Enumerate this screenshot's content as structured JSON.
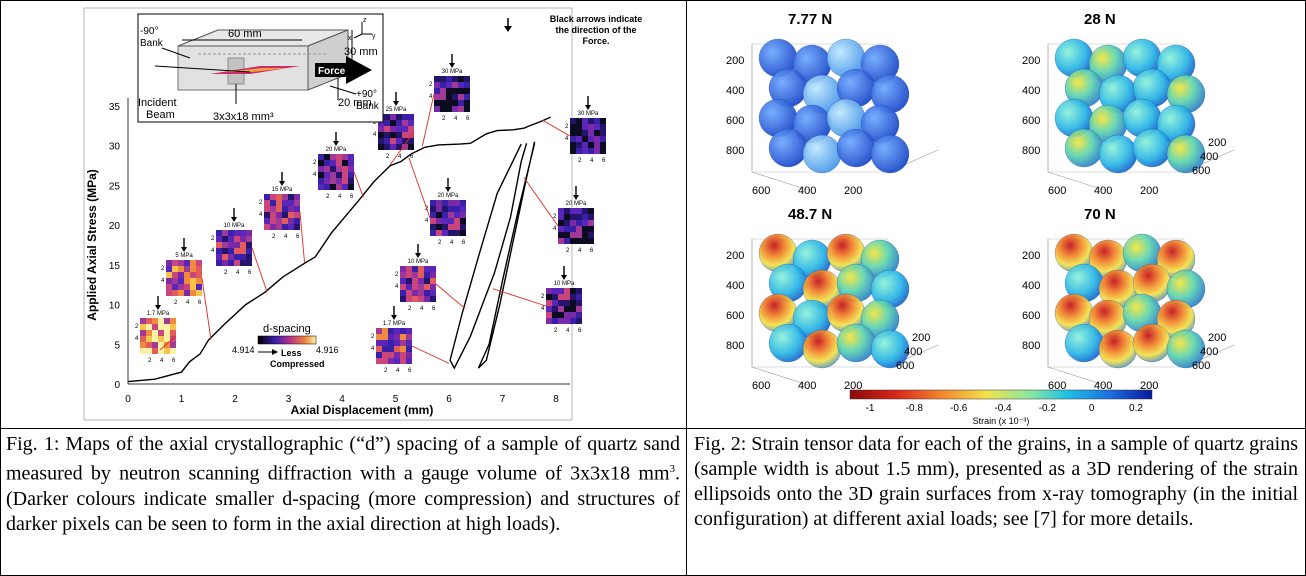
{
  "fig1": {
    "chart_data": {
      "type": "line",
      "title": "",
      "xlabel": "Axial Displacement (mm)",
      "ylabel": "Applied Axial Stress (MPa)",
      "xlim": [
        0,
        8
      ],
      "ylim": [
        0,
        35
      ],
      "x_ticks": [
        "0",
        "1",
        "2",
        "3",
        "4",
        "5",
        "6",
        "7",
        "8"
      ],
      "y_ticks": [
        "0",
        "5",
        "10",
        "15",
        "20",
        "25",
        "30",
        "35"
      ],
      "curve": [
        [
          0,
          0.3
        ],
        [
          0.5,
          0.6
        ],
        [
          1.0,
          1.5
        ],
        [
          1.15,
          2.8
        ],
        [
          1.35,
          3.8
        ],
        [
          1.5,
          5.5
        ],
        [
          1.8,
          7.5
        ],
        [
          2.2,
          10
        ],
        [
          2.55,
          11.5
        ],
        [
          2.9,
          13.5
        ],
        [
          3.3,
          15.2
        ],
        [
          3.5,
          16
        ],
        [
          3.8,
          19
        ],
        [
          4.3,
          23
        ],
        [
          4.6,
          25.5
        ],
        [
          4.9,
          27.5
        ],
        [
          5.1,
          28
        ],
        [
          5.3,
          29
        ],
        [
          5.55,
          29.8
        ],
        [
          5.8,
          30.1
        ],
        [
          6.2,
          30.2
        ],
        [
          6.4,
          30.3
        ],
        [
          6.7,
          31.5
        ],
        [
          6.9,
          31.9
        ],
        [
          7.2,
          32
        ],
        [
          7.4,
          32.2
        ],
        [
          7.5,
          32.5
        ],
        [
          7.7,
          33
        ],
        [
          7.8,
          33.3
        ],
        [
          7.9,
          33.6
        ]
      ],
      "loops": [
        [
          [
            7.35,
            30.2
          ],
          [
            6.9,
            24
          ],
          [
            6.55,
            16
          ],
          [
            6.25,
            9
          ],
          [
            6.02,
            3
          ],
          [
            6.1,
            2
          ],
          [
            6.4,
            6
          ],
          [
            6.85,
            14
          ],
          [
            7.15,
            21
          ],
          [
            7.35,
            28
          ],
          [
            7.45,
            30.3
          ]
        ],
        [
          [
            7.6,
            30.3
          ],
          [
            7.3,
            22
          ],
          [
            7.0,
            13
          ],
          [
            6.75,
            5
          ],
          [
            6.55,
            2
          ],
          [
            6.7,
            3
          ],
          [
            6.95,
            10
          ],
          [
            7.2,
            18
          ],
          [
            7.45,
            26
          ],
          [
            7.6,
            30.5
          ]
        ]
      ],
      "maps": [
        {
          "label": "1.7 MPa"
        },
        {
          "label": "5 MPa"
        },
        {
          "label": "10 MPa"
        },
        {
          "label": "15 MPa"
        },
        {
          "label": "20 MPa"
        },
        {
          "label": "25 MPa"
        },
        {
          "label": "30 MPa"
        },
        {
          "label": "20 MPa"
        },
        {
          "label": "10 MPa"
        },
        {
          "label": "1.7 MPa"
        },
        {
          "label": "30 MPa"
        },
        {
          "label": "20 MPa"
        },
        {
          "label": "10 MPa"
        }
      ],
      "map_axis": {
        "rows": [
          "2",
          "4"
        ],
        "cols": [
          "2",
          "4",
          "6"
        ]
      },
      "colorbar": {
        "title": "d-spacing",
        "min": "4.914",
        "max": "4.916",
        "note_1": "Less",
        "note_2": "Compressed"
      },
      "annotation": "Black arrows indicate the direction of the Force."
    },
    "schematic": {
      "length": "60 mm",
      "height": "30 mm",
      "width": "20 mm",
      "bank_left_1": "-90°",
      "bank_left_2": "Bank",
      "bank_right_1": "+90°",
      "bank_right_2": "Bank",
      "force": "Force",
      "beam_1": "Incident",
      "beam_2": "Beam",
      "gauge": "3x3x18 mm³",
      "axis_z": "z",
      "axis_x": "x",
      "axis_y": "y"
    },
    "caption_text": "Fig. 1: Maps of the axial crystallographic (“d”) spacing of a sample of quartz sand measured by neutron scanning diffraction with a gauge volume of 3x3x18 mm3. (Darker colours indicate smaller d-spacing (more compression) and structures of darker pixels can be seen to form in the axial direction at high loads)."
  },
  "fig2": {
    "panels": [
      {
        "load": "7.77 N",
        "y_ticks": [
          "200",
          "400",
          "600",
          "800"
        ],
        "x_ticks": [
          "600",
          "400",
          "200"
        ],
        "z_ticks": []
      },
      {
        "load": "28 N",
        "y_ticks": [
          "200",
          "400",
          "600",
          "800"
        ],
        "x_ticks": [
          "600",
          "400",
          "200"
        ],
        "z_ticks": [
          "200",
          "400",
          "600"
        ]
      },
      {
        "load": "48.7 N",
        "y_ticks": [
          "200",
          "400",
          "600",
          "800"
        ],
        "x_ticks": [
          "600",
          "400",
          "200"
        ],
        "z_ticks": [
          "200",
          "400",
          "600"
        ]
      },
      {
        "load": "70 N",
        "y_ticks": [
          "200",
          "400",
          "600",
          "800"
        ],
        "x_ticks": [
          "600",
          "400",
          "200"
        ],
        "z_ticks": [
          "200",
          "400",
          "600"
        ]
      }
    ],
    "colorbar": {
      "ticks": [
        "-1",
        "-0.8",
        "-0.6",
        "-0.4",
        "-0.2",
        "0",
        "0.2"
      ],
      "label": "Strain (x 10⁻³)"
    },
    "caption_text": "Fig. 2: Strain tensor data for each of the grains, in a sample of quartz grains (sample width is about 1.5 mm), presented as a 3D rendering of the strain ellipsoids onto the 3D grain surfaces from x-ray tomography (in the initial configuration) at different axial loads; see [7] for more details."
  },
  "captions": {
    "fig1": {
      "pre": "Fig. 1: Maps of the axial crystallographic (“d”) spacing of a sample of quartz sand measured by neutron scanning diffraction with a gauge volume of 3x3x18 mm",
      "sup": "3",
      "post": ". (Darker colours indicate smaller d-spacing (more compression) and structures of darker pixels can be seen to form in the axial direction at high loads)."
    },
    "fig2": "Fig. 2: Strain tensor data for each of the grains, in a sample of quartz grains (sample width is about 1.5 mm), presented as a 3D rendering of the strain ellipsoids onto the 3D grain surfaces from x-ray tomography (in the initial configuration) at different axial loads; see [7] for more details."
  }
}
